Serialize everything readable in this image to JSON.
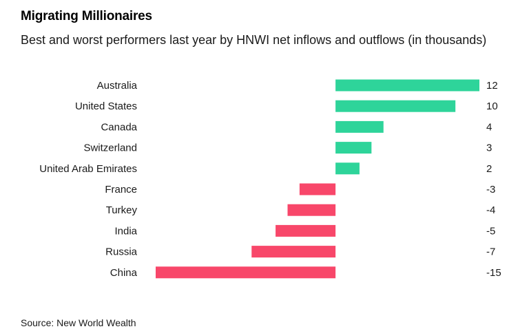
{
  "chart_data": {
    "type": "bar",
    "orientation": "horizontal",
    "title": "Migrating Millionaires",
    "subtitle": "Best and worst performers last year by HNWI net inflows and outflows (in thousands)",
    "source": "Source: New World Wealth",
    "categories": [
      "Australia",
      "United States",
      "Canada",
      "Switzerland",
      "United Arab Emirates",
      "France",
      "Turkey",
      "India",
      "Russia",
      "China"
    ],
    "values": [
      12,
      10,
      4,
      3,
      2,
      -3,
      -4,
      -5,
      -7,
      -15
    ],
    "value_labels": [
      "12",
      "10",
      "4",
      "3",
      "2",
      "-3",
      "-4",
      "-5",
      "-7",
      "-15"
    ],
    "xlim": [
      -15,
      12
    ],
    "xlabel": "",
    "ylabel": "",
    "grid": false,
    "colors": {
      "positive": "#2ed49a",
      "negative": "#f8476a"
    }
  }
}
